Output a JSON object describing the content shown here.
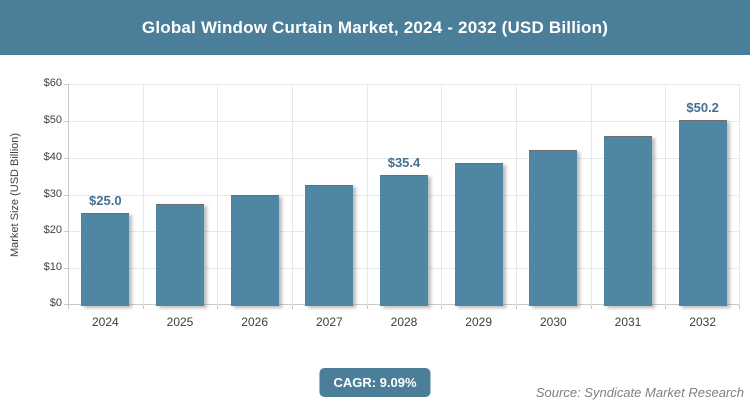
{
  "header": {
    "title": "Global Window Curtain Market, 2024 - 2032 (USD Billion)"
  },
  "footer": {
    "cagr_label": "CAGR: 9.09%",
    "source": "Source: Syndicate Market Research"
  },
  "colors": {
    "header_bg": "#4A7E99",
    "bar": "#4E86A3",
    "badge_bg": "#4A7E99",
    "data_label": "#46708E",
    "grid": "#E8E8E8",
    "axis": "#C9C9C9",
    "tick_text": "#3F3F3F",
    "source_text": "#808080"
  },
  "chart_data": {
    "type": "bar",
    "title": "Global Window Curtain Market, 2024 - 2032 (USD Billion)",
    "xlabel": "",
    "ylabel": "Market Size (USD Billion)",
    "ylim": [
      0,
      60
    ],
    "ytick_step": 10,
    "ytick_labels": [
      "$0",
      "$10",
      "$20",
      "$30",
      "$40",
      "$50",
      "$60"
    ],
    "grid": true,
    "legend": "none",
    "categories": [
      "2024",
      "2025",
      "2026",
      "2027",
      "2028",
      "2029",
      "2030",
      "2031",
      "2032"
    ],
    "values": [
      25.0,
      27.3,
      29.8,
      32.5,
      35.4,
      38.6,
      42.1,
      46.0,
      50.2
    ],
    "data_labels": [
      "$25.0",
      null,
      null,
      null,
      "$35.4",
      null,
      null,
      null,
      "$50.2"
    ]
  }
}
